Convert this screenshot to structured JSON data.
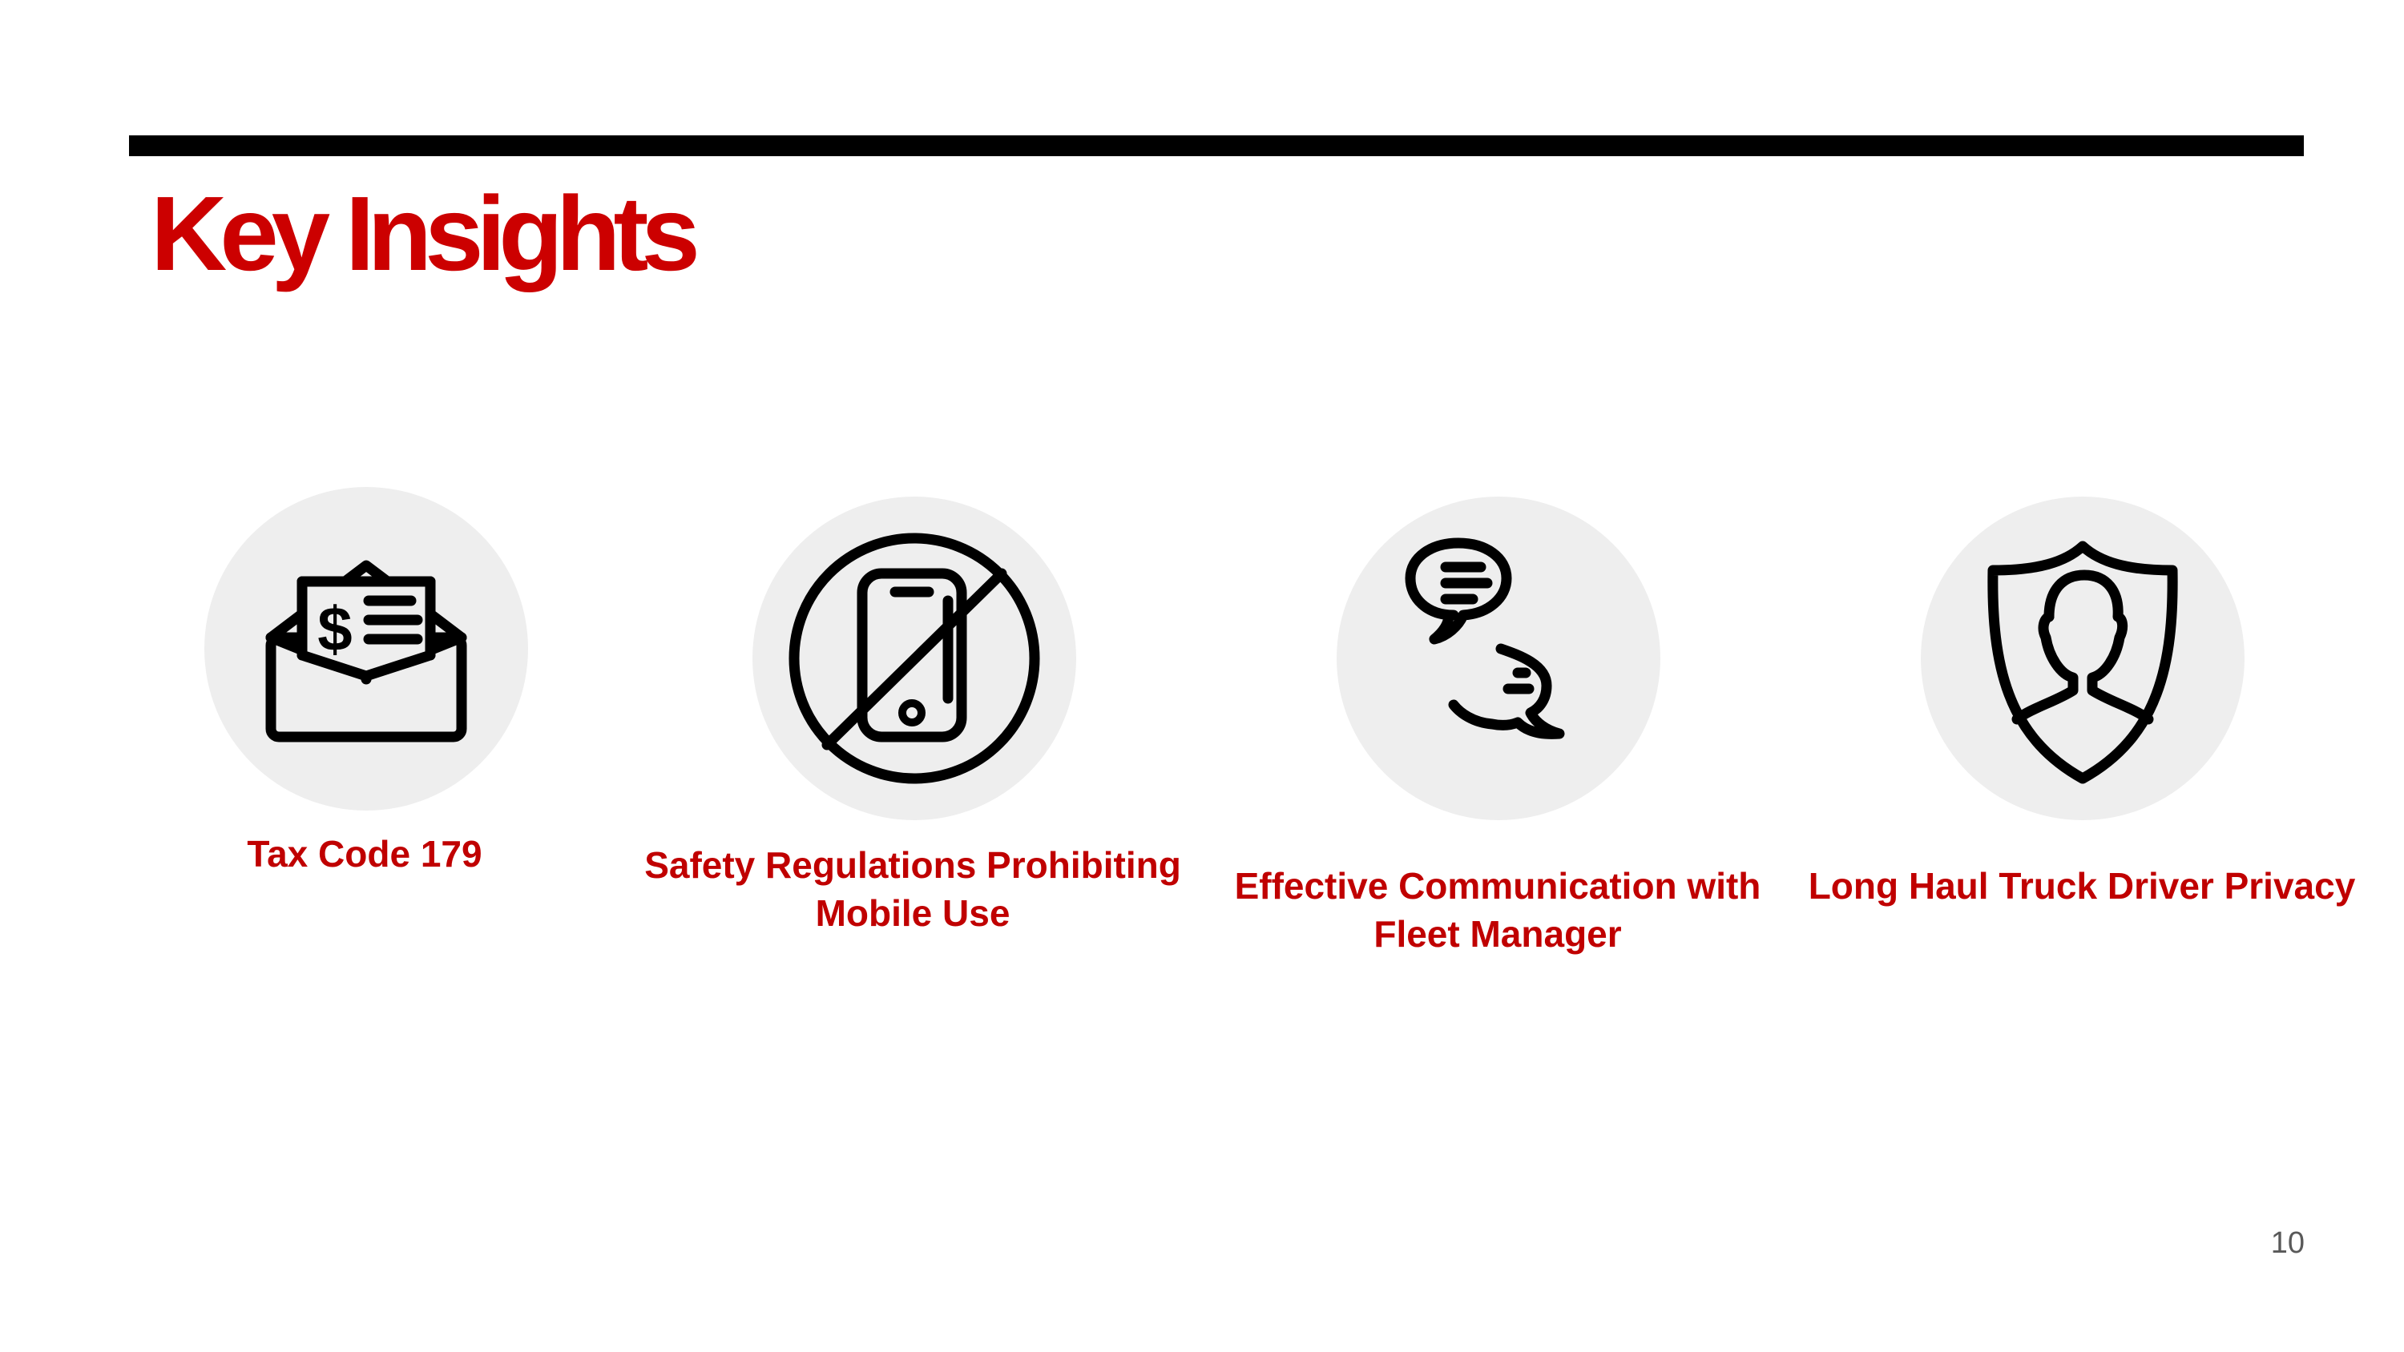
{
  "slide": {
    "title": "Key Insights",
    "page_number": "10"
  },
  "insights": [
    {
      "icon": "money-envelope-icon",
      "caption": "Tax Code 179"
    },
    {
      "icon": "no-mobile-phone-icon",
      "caption": "Safety Regulations Prohibiting Mobile Use"
    },
    {
      "icon": "chat-bubbles-icon",
      "caption": "Effective Communication with Fleet Manager"
    },
    {
      "icon": "shield-person-icon",
      "caption": "Long Haul Truck Driver Privacy"
    }
  ],
  "colors": {
    "title": "#cc0000",
    "caption": "#c00000",
    "rule": "#000000",
    "icon_circle": "#eeeeee",
    "icon_stroke": "#000000"
  }
}
